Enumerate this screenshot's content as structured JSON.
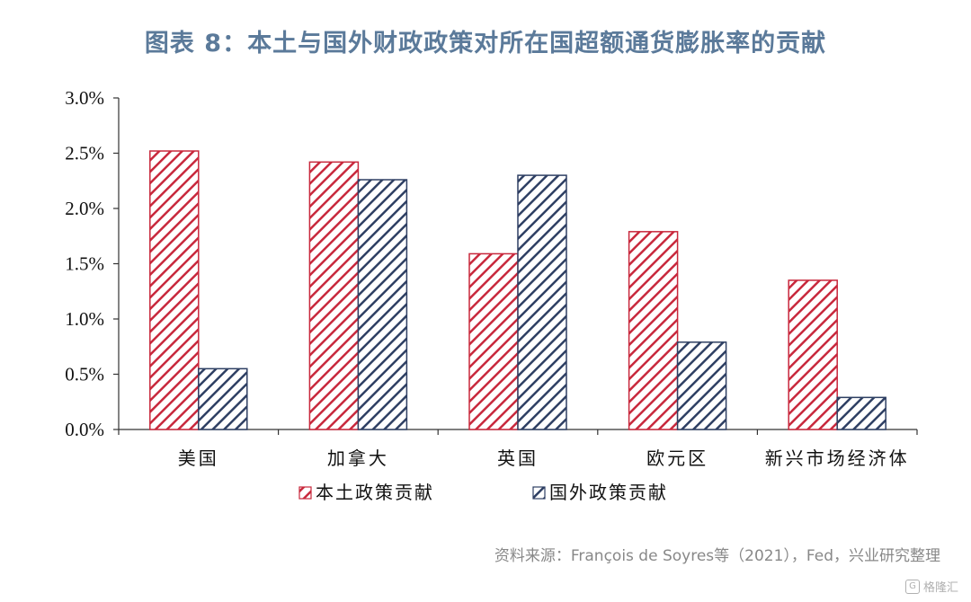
{
  "title": "图表 8：本土与国外财政政策对所在国超额通货膨胀率的贡献",
  "source": "资料来源：François de Soyres等（2021），Fed，兴业研究整理",
  "watermark": "格隆汇",
  "colors": {
    "domestic": "#c8283c",
    "foreign": "#2e3f63",
    "title": "#5b7a9a"
  },
  "chart_data": {
    "type": "bar",
    "categories": [
      "美国",
      "加拿大",
      "英国",
      "欧元区",
      "新兴市场经济体"
    ],
    "series": [
      {
        "name": "本土政策贡献",
        "values": [
          2.52,
          2.42,
          1.59,
          1.79,
          1.35
        ]
      },
      {
        "name": "国外政策贡献",
        "values": [
          0.55,
          2.26,
          2.3,
          0.79,
          0.29
        ]
      }
    ],
    "yticks": [
      "0.0%",
      "0.5%",
      "1.0%",
      "1.5%",
      "2.0%",
      "2.5%",
      "3.0%"
    ],
    "ylim": [
      0,
      3.0
    ],
    "legend_position": "bottom",
    "bar_pattern": "diagonal-hatch",
    "grid": false
  }
}
